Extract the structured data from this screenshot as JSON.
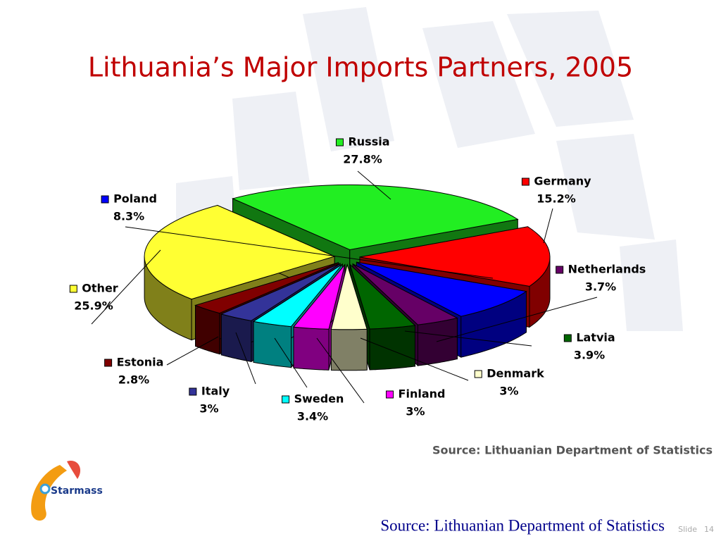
{
  "chart_data": {
    "type": "pie",
    "title": "Lithuania’s Major Imports Partners, 2005",
    "categories": [
      "Russia",
      "Germany",
      "Poland",
      "Netherlands",
      "Latvia",
      "Denmark",
      "Finland",
      "Sweden",
      "Italy",
      "Estonia",
      "Other"
    ],
    "values": [
      27.8,
      15.2,
      8.3,
      3.7,
      3.9,
      3,
      3,
      3.4,
      3,
      2.8,
      25.9
    ],
    "value_labels": [
      "27.8%",
      "15.2%",
      "8.3%",
      "3.7%",
      "3.9%",
      "3%",
      "3%",
      "3.4%",
      "3%",
      "2.8%",
      "25.9%"
    ],
    "colors": [
      "#22ee22",
      "#ff0000",
      "#0000ff",
      "#660066",
      "#006600",
      "#ffffcc",
      "#ff00ff",
      "#00ffff",
      "#333399",
      "#800000",
      "#ffff33"
    ],
    "source": "Source: Lithuanian Department of Statistics"
  },
  "footer": {
    "source": "Source: Lithuanian Department of Statistics",
    "slide_label": "Slide",
    "slide_number": "14"
  },
  "logo": "Starmass"
}
